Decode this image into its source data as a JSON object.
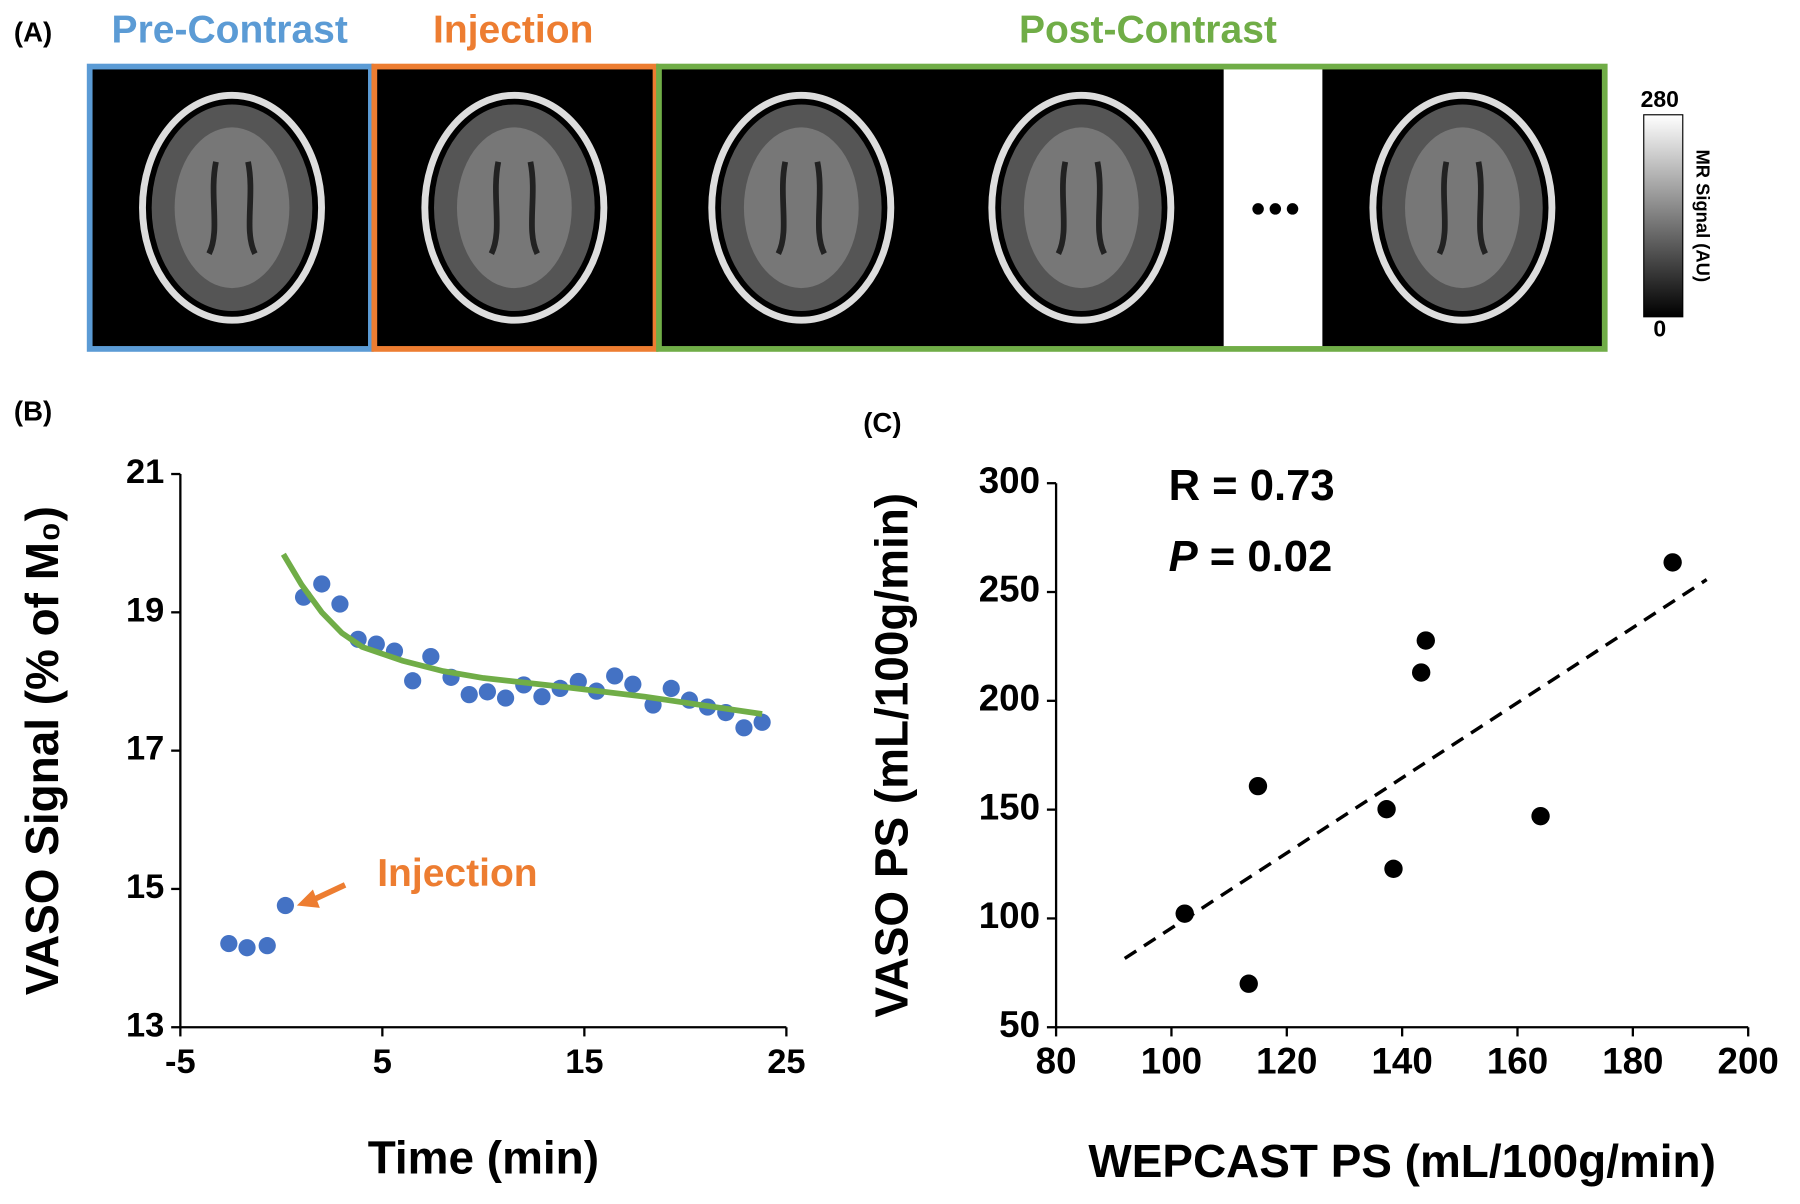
{
  "panel_a": {
    "label": "(A)",
    "groups": [
      {
        "title": "Pre-Contrast",
        "color": "#5b9bd5"
      },
      {
        "title": "Injection",
        "color": "#ed7d31"
      },
      {
        "title": "Post-Contrast",
        "color": "#70ad47"
      }
    ],
    "colorbar": {
      "label": "MR Signal (AU)",
      "range": [
        0,
        280
      ]
    }
  },
  "chart_data": [
    {
      "type": "scatter",
      "panel_label": "(B)",
      "x_label": "Time (min)",
      "y_label": "VASO Signal (% of M₀)",
      "xlim": [
        -5,
        25
      ],
      "xticks": [
        -5,
        5,
        15,
        25
      ],
      "ylim": [
        13,
        21
      ],
      "yticks": [
        13,
        15,
        17,
        19,
        21
      ],
      "annotations": [
        {
          "text": "Injection",
          "color": "#ed7d31"
        }
      ],
      "series": [
        {
          "mode": "markers",
          "color": "#4472c4",
          "x": [
            -2.6,
            -1.7,
            -0.7,
            0.2,
            1.1,
            2.0,
            2.9,
            3.8,
            4.7,
            5.6,
            6.5,
            7.4,
            8.4,
            9.3,
            10.2,
            11.1,
            12.0,
            12.9,
            13.8,
            14.7,
            15.6,
            16.5,
            17.4,
            18.4,
            19.3,
            20.2,
            21.1,
            22.0,
            22.9,
            23.8
          ],
          "values": [
            14.21,
            14.15,
            14.18,
            14.76,
            19.22,
            19.41,
            19.12,
            18.61,
            18.54,
            18.44,
            18.01,
            18.36,
            18.06,
            17.81,
            17.85,
            17.76,
            17.95,
            17.78,
            17.9,
            18.0,
            17.86,
            18.08,
            17.96,
            17.66,
            17.9,
            17.73,
            17.63,
            17.55,
            17.33,
            17.41
          ]
        },
        {
          "mode": "line",
          "color": "#70ad47",
          "x": [
            0.1,
            1,
            2,
            3,
            4,
            6,
            8,
            10,
            14,
            18,
            21,
            23.8
          ],
          "values": [
            19.84,
            19.4,
            19.0,
            18.7,
            18.5,
            18.3,
            18.15,
            18.05,
            17.92,
            17.78,
            17.65,
            17.53
          ]
        }
      ]
    },
    {
      "type": "scatter",
      "panel_label": "(C)",
      "x_label": "WEPCAST PS (mL/100g/min)",
      "y_label": "VASO PS (mL/100g/min)",
      "xlim": [
        80,
        200
      ],
      "xticks": [
        80,
        100,
        120,
        140,
        160,
        180,
        200
      ],
      "ylim": [
        50,
        300
      ],
      "yticks": [
        50,
        100,
        150,
        200,
        250,
        300
      ],
      "stats": [
        {
          "text": "R = 0.73"
        },
        {
          "symbol": "P",
          "text": " = 0.02"
        }
      ],
      "series": [
        {
          "mode": "markers",
          "color": "#000000",
          "x": [
            102.3,
            113.4,
            115.0,
            137.3,
            138.5,
            143.3,
            144.1,
            164.0,
            186.9
          ],
          "values": [
            102.2,
            70.0,
            160.8,
            150.2,
            122.8,
            213.0,
            227.7,
            147.0,
            263.6
          ]
        },
        {
          "mode": "line",
          "dash": true,
          "color": "#000000",
          "x": [
            91.9,
            192.8
          ],
          "values": [
            81.6,
            255.7
          ]
        }
      ]
    }
  ]
}
